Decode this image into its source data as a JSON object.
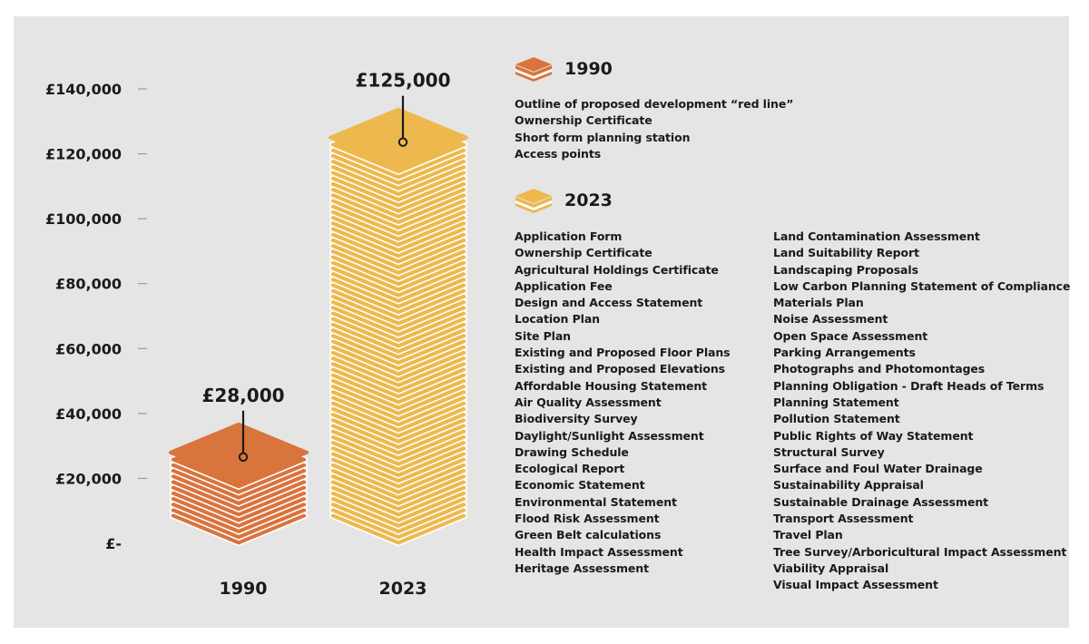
{
  "colors": {
    "background": "#e5e5e5",
    "bar_1990": "#d9743d",
    "bar_2023": "#edb94e",
    "text": "#1a1a1a"
  },
  "chart_data": {
    "type": "bar",
    "categories": [
      "1990",
      "2023"
    ],
    "values": [
      28000,
      125000
    ],
    "value_labels": [
      "£28,000",
      "£125,000"
    ],
    "y_ticks": [
      "£-",
      "£20,000",
      "£40,000",
      "£60,000",
      "£80,000",
      "£100,000",
      "£120,000",
      "£140,000"
    ],
    "y_tick_values": [
      0,
      20000,
      40000,
      60000,
      80000,
      100000,
      120000,
      140000
    ],
    "ylim": [
      0,
      140000
    ],
    "grid": false,
    "legend_position": "right"
  },
  "legend": {
    "items": [
      {
        "year": "1990",
        "color": "#d9743d",
        "documents": [
          "Outline of proposed development “red line”",
          "Ownership Certificate",
          "Short form planning station",
          "Access points"
        ]
      },
      {
        "year": "2023",
        "color": "#edb94e",
        "documents_col1": [
          "Application Form",
          "Ownership Certificate",
          "Agricultural Holdings Certificate",
          "Application Fee",
          "Design and Access Statement",
          "Location Plan",
          "Site Plan",
          "Existing and Proposed Floor Plans",
          "Existing and Proposed Elevations",
          "Affordable Housing Statement",
          "Air Quality Assessment",
          "Biodiversity Survey",
          "Daylight/Sunlight Assessment",
          "Drawing Schedule",
          "Ecological Report",
          "Economic Statement",
          "Environmental Statement",
          "Flood Risk Assessment",
          "Green Belt calculations",
          "Health Impact Assessment",
          "Heritage Assessment"
        ],
        "documents_col2": [
          "Land Contamination Assessment",
          "Land Suitability Report",
          "Landscaping Proposals",
          "Low Carbon Planning Statement of Compliance",
          "Materials Plan",
          "Noise Assessment",
          "Open Space Assessment",
          "Parking Arrangements",
          "Photographs and Photomontages",
          "Planning Obligation - Draft Heads of Terms",
          "Planning Statement",
          "Pollution Statement",
          "Public Rights of Way Statement",
          "Structural Survey",
          "Surface and Foul Water Drainage",
          "Sustainability Appraisal",
          "Sustainable Drainage Assessment",
          "Transport Assessment",
          "Travel Plan",
          "Tree Survey/Arboricultural Impact Assessment",
          "Viability Appraisal",
          "Visual Impact Assessment"
        ]
      }
    ]
  }
}
